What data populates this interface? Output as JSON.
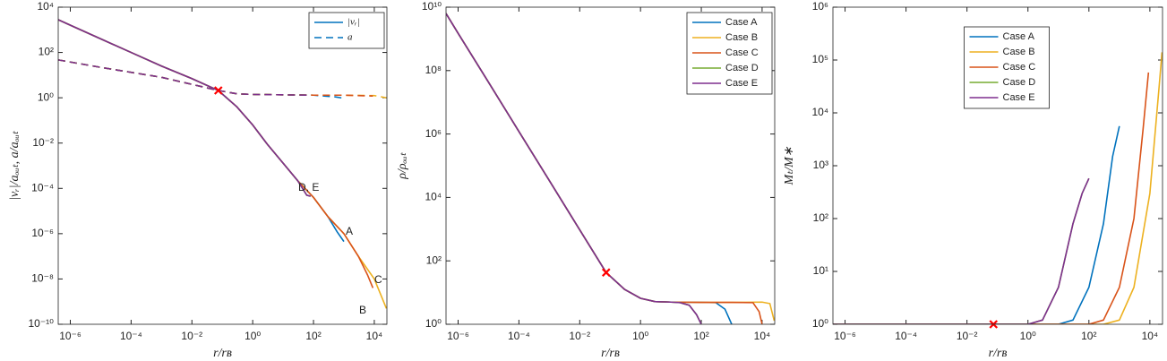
{
  "chart_data": [
    {
      "type": "line",
      "xlabel": "r/rʙ",
      "ylabel": "|vᵣ|/aₒᵤₜ, a/aₒᵤₜ",
      "log_x": true,
      "log_y": true,
      "xlim": [
        4e-07,
        26000
      ],
      "ylim": [
        1e-10,
        10000
      ],
      "xticks": [
        {
          "value": 1e-06,
          "label": "10⁻⁶"
        },
        {
          "value": 0.0001,
          "label": "10⁻⁴"
        },
        {
          "value": 0.01,
          "label": "10⁻²"
        },
        {
          "value": 1,
          "label": "10⁰"
        },
        {
          "value": 100,
          "label": "10²"
        },
        {
          "value": 10000,
          "label": "10⁴"
        }
      ],
      "yticks": [
        {
          "value": 1e-10,
          "label": "10⁻¹⁰"
        },
        {
          "value": 1e-08,
          "label": "10⁻⁸"
        },
        {
          "value": 1e-06,
          "label": "10⁻⁶"
        },
        {
          "value": 0.0001,
          "label": "10⁻⁴"
        },
        {
          "value": 0.01,
          "label": "10⁻²"
        },
        {
          "value": 1,
          "label": "10⁰"
        },
        {
          "value": 100,
          "label": "10²"
        },
        {
          "value": 10000,
          "label": "10⁴"
        }
      ],
      "legend": [
        {
          "label": "|vᵣ|",
          "style": "solid"
        },
        {
          "label": "a",
          "style": "dashed"
        }
      ],
      "legend_color": "#0072BD",
      "legend_loc": "upper right",
      "annotations": [
        "D, E",
        "A",
        "C",
        "B"
      ],
      "marker": {
        "x": 0.074,
        "y": 2.1,
        "color": "#ff0000"
      },
      "series": [
        {
          "color": "#0072BD",
          "style": "solid",
          "x": [
            4e-07,
            1e-06,
            1e-05,
            0.0001,
            0.001,
            0.01,
            0.074,
            0.3,
            1,
            3,
            10,
            30,
            100,
            300,
            600,
            1000
          ],
          "values": [
            2800,
            1600,
            400,
            100,
            25,
            7,
            2.1,
            0.4,
            0.063,
            0.009,
            0.0013,
            0.00022,
            4e-05,
            5.6e-06,
            1.2e-06,
            4.5e-07
          ]
        },
        {
          "color": "#EDB120",
          "style": "solid",
          "x": [
            4e-07,
            1e-06,
            1e-05,
            0.0001,
            0.001,
            0.01,
            0.074,
            0.3,
            1,
            3,
            10,
            30,
            100,
            300,
            1000,
            3000,
            10000,
            25000
          ],
          "values": [
            2800,
            1600,
            400,
            100,
            25,
            7,
            2.1,
            0.4,
            0.063,
            0.009,
            0.0013,
            0.00022,
            4e-05,
            5.6e-06,
            1e-06,
            1e-07,
            1e-08,
            5e-10
          ]
        },
        {
          "color": "#D95319",
          "style": "solid",
          "x": [
            4e-07,
            1e-06,
            1e-05,
            0.0001,
            0.001,
            0.01,
            0.074,
            0.3,
            1,
            3,
            10,
            30,
            100,
            300,
            1000,
            3000,
            6000,
            9000
          ],
          "values": [
            2800,
            1600,
            400,
            100,
            25,
            7,
            2.1,
            0.4,
            0.063,
            0.009,
            0.0013,
            0.00022,
            4e-05,
            5.6e-06,
            1e-06,
            1e-07,
            1.5e-08,
            4e-09
          ]
        },
        {
          "color": "#77AC30",
          "style": "solid",
          "x": [
            4e-07,
            1e-06,
            1e-05,
            0.0001,
            0.001,
            0.01,
            0.074,
            0.3,
            1,
            3,
            10,
            30,
            60,
            80
          ],
          "values": [
            2800,
            1600,
            400,
            100,
            25,
            7,
            2.1,
            0.4,
            0.063,
            0.009,
            0.0013,
            0.00022,
            5e-05,
            4.5e-05
          ]
        },
        {
          "color": "#7E2F8E",
          "style": "solid",
          "x": [
            4e-07,
            1e-06,
            1e-05,
            0.0001,
            0.001,
            0.01,
            0.074,
            0.3,
            1,
            3,
            10,
            30,
            60,
            80
          ],
          "values": [
            2800,
            1600,
            400,
            100,
            25,
            7,
            2.1,
            0.4,
            0.063,
            0.009,
            0.0013,
            0.00022,
            5e-05,
            4.5e-05
          ]
        },
        {
          "color": "#0072BD",
          "style": "dashed",
          "x": [
            4e-07,
            1e-05,
            0.001,
            0.074,
            0.3,
            1,
            10,
            100,
            500,
            1000
          ],
          "values": [
            47,
            22,
            8,
            2.1,
            1.5,
            1.4,
            1.35,
            1.3,
            1.1,
            0.95
          ]
        },
        {
          "color": "#EDB120",
          "style": "dashed",
          "x": [
            4e-07,
            1e-05,
            0.001,
            0.074,
            0.3,
            1,
            10,
            100,
            1000,
            10000,
            25000
          ],
          "values": [
            47,
            22,
            8,
            2.1,
            1.5,
            1.4,
            1.35,
            1.3,
            1.3,
            1.25,
            1.0
          ]
        },
        {
          "color": "#D95319",
          "style": "dashed",
          "x": [
            4e-07,
            1e-05,
            0.001,
            0.074,
            0.3,
            1,
            10,
            100,
            1000,
            9000
          ],
          "values": [
            47,
            22,
            8,
            2.1,
            1.5,
            1.4,
            1.35,
            1.3,
            1.3,
            1.2
          ]
        },
        {
          "color": "#77AC30",
          "style": "dashed",
          "x": [
            4e-07,
            1e-05,
            0.001,
            0.074,
            0.3,
            1,
            10,
            80
          ],
          "values": [
            47,
            22,
            8,
            2.1,
            1.5,
            1.4,
            1.35,
            1.3
          ]
        },
        {
          "color": "#7E2F8E",
          "style": "dashed",
          "x": [
            4e-07,
            1e-05,
            0.001,
            0.074,
            0.3,
            1,
            10,
            80
          ],
          "values": [
            47,
            22,
            8,
            2.1,
            1.5,
            1.4,
            1.35,
            1.3
          ]
        }
      ]
    },
    {
      "type": "line",
      "xlabel": "r/rʙ",
      "ylabel": "ρ/ρₒᵤₜ",
      "log_x": true,
      "log_y": true,
      "xlim": [
        4e-07,
        26000
      ],
      "ylim": [
        1,
        10000000000
      ],
      "xticks": [
        {
          "value": 1e-06,
          "label": "10⁻⁶"
        },
        {
          "value": 0.0001,
          "label": "10⁻⁴"
        },
        {
          "value": 0.01,
          "label": "10⁻²"
        },
        {
          "value": 1,
          "label": "10⁰"
        },
        {
          "value": 100,
          "label": "10²"
        },
        {
          "value": 10000,
          "label": "10⁴"
        }
      ],
      "yticks": [
        {
          "value": 1,
          "label": "10⁰"
        },
        {
          "value": 100,
          "label": "10²"
        },
        {
          "value": 10000,
          "label": "10⁴"
        },
        {
          "value": 1000000,
          "label": "10⁶"
        },
        {
          "value": 100000000,
          "label": "10⁸"
        },
        {
          "value": 10000000000,
          "label": "10¹⁰"
        }
      ],
      "legend_loc": "upper right",
      "marker": {
        "x": 0.074,
        "y": 43,
        "color": "#ff0000"
      },
      "series": [
        {
          "name": "Case A",
          "color": "#0072BD",
          "x": [
            4e-07,
            1e-06,
            1e-05,
            0.0001,
            0.001,
            0.01,
            0.074,
            0.3,
            1,
            3,
            10,
            100,
            300,
            600,
            1000
          ],
          "values": [
            6300000000,
            1500000000,
            43000000,
            1200000,
            34000,
            950,
            43,
            12.6,
            6.6,
            5.2,
            5,
            4.9,
            4.8,
            3,
            1
          ]
        },
        {
          "name": "Case B",
          "color": "#EDB120",
          "x": [
            4e-07,
            1e-06,
            1e-05,
            0.0001,
            0.001,
            0.01,
            0.074,
            0.3,
            1,
            3,
            10,
            100,
            1000,
            10000,
            18000,
            25000
          ],
          "values": [
            6300000000,
            1500000000,
            43000000,
            1200000,
            34000,
            950,
            43,
            12.6,
            6.6,
            5.2,
            5,
            4.9,
            4.9,
            5,
            4.5,
            1.3
          ]
        },
        {
          "name": "Case C",
          "color": "#D95319",
          "x": [
            4e-07,
            1e-06,
            1e-05,
            0.0001,
            0.001,
            0.01,
            0.074,
            0.3,
            1,
            3,
            10,
            100,
            1000,
            5000,
            8000,
            10000
          ],
          "values": [
            6300000000,
            1500000000,
            43000000,
            1200000,
            34000,
            950,
            43,
            12.6,
            6.6,
            5.2,
            5,
            4.9,
            4.9,
            4.8,
            2.5,
            1
          ]
        },
        {
          "name": "Case D",
          "color": "#77AC30",
          "x": [
            4e-07,
            1e-06,
            1e-05,
            0.0001,
            0.001,
            0.01,
            0.074,
            0.3,
            1,
            3,
            10,
            20,
            40,
            70,
            100
          ],
          "values": [
            6300000000,
            1500000000,
            43000000,
            1200000,
            34000,
            950,
            43,
            12.6,
            6.6,
            5.2,
            5,
            4.8,
            4,
            2,
            1
          ]
        },
        {
          "name": "Case E",
          "color": "#7E2F8E",
          "x": [
            4e-07,
            1e-06,
            1e-05,
            0.0001,
            0.001,
            0.01,
            0.074,
            0.3,
            1,
            3,
            10,
            20,
            40,
            70,
            100
          ],
          "values": [
            6300000000,
            1500000000,
            43000000,
            1200000,
            34000,
            950,
            43,
            12.6,
            6.6,
            5.2,
            5,
            4.8,
            4,
            2,
            1
          ]
        }
      ]
    },
    {
      "type": "line",
      "xlabel": "r/rʙ",
      "ylabel": "Mₜ/M∗",
      "log_x": true,
      "log_y": true,
      "xlim": [
        4e-07,
        26000
      ],
      "ylim": [
        1,
        1000000
      ],
      "xticks": [
        {
          "value": 1e-06,
          "label": "10⁻⁶"
        },
        {
          "value": 0.0001,
          "label": "10⁻⁴"
        },
        {
          "value": 0.01,
          "label": "10⁻²"
        },
        {
          "value": 1,
          "label": "10⁰"
        },
        {
          "value": 100,
          "label": "10²"
        },
        {
          "value": 10000,
          "label": "10⁴"
        }
      ],
      "yticks": [
        {
          "value": 1,
          "label": "10⁰"
        },
        {
          "value": 10,
          "label": "10¹"
        },
        {
          "value": 100,
          "label": "10²"
        },
        {
          "value": 1000,
          "label": "10³"
        },
        {
          "value": 10000,
          "label": "10⁴"
        },
        {
          "value": 100000,
          "label": "10⁵"
        },
        {
          "value": 1000000,
          "label": "10⁶"
        }
      ],
      "legend_loc": "upper center",
      "marker": {
        "x": 0.074,
        "y": 1,
        "color": "#ff0000"
      },
      "series": [
        {
          "name": "Case A",
          "color": "#0072BD",
          "x": [
            4e-07,
            1,
            10,
            30,
            100,
            300,
            600,
            1000
          ],
          "values": [
            1,
            1,
            1,
            1.2,
            5,
            80,
            1500,
            5600
          ]
        },
        {
          "name": "Case B",
          "color": "#EDB120",
          "x": [
            4e-07,
            1,
            300,
            1000,
            3000,
            10000,
            20000,
            25000
          ],
          "values": [
            1,
            1,
            1,
            1.2,
            5,
            300,
            30000,
            140000
          ]
        },
        {
          "name": "Case C",
          "color": "#D95319",
          "x": [
            4e-07,
            1,
            100,
            300,
            1000,
            3000,
            6000,
            9000
          ],
          "values": [
            1,
            1,
            1,
            1.2,
            5,
            100,
            5000,
            58000
          ]
        },
        {
          "name": "Case D",
          "color": "#77AC30",
          "x": [
            4e-07,
            1,
            3,
            10,
            30,
            60,
            100
          ],
          "values": [
            1,
            1,
            1.2,
            5,
            80,
            300,
            575
          ]
        },
        {
          "name": "Case E",
          "color": "#7E2F8E",
          "x": [
            4e-07,
            1,
            3,
            10,
            30,
            60,
            100
          ],
          "values": [
            1,
            1,
            1.2,
            5,
            80,
            300,
            575
          ]
        }
      ]
    }
  ]
}
